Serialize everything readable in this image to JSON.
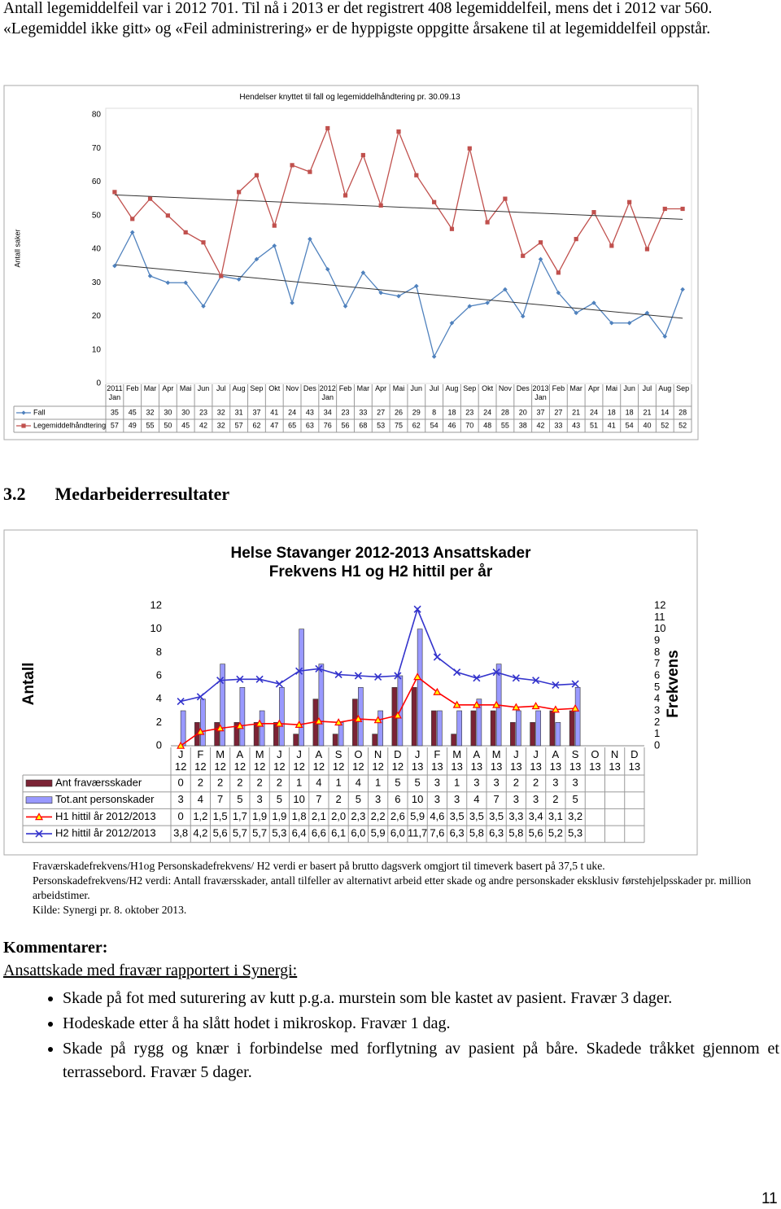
{
  "intro": "Antall legemiddelfeil var i 2012 701. Til nå i 2013 er det registrert 408 legemiddelfeil, mens det i 2012 var 560. «Legemiddel ikke gitt» og «Feil administrering» er de hyppigste oppgitte årsakene til at legemiddelfeil oppstår.",
  "section": {
    "number": "3.2",
    "title": "Medarbeiderresultater"
  },
  "chart_data": [
    {
      "type": "line",
      "title": "Hendelser knyttet til fall og legemiddelhåndtering pr. 30.09.13",
      "y_label": "Antall saker",
      "categories": [
        "2011 Jan",
        "Feb",
        "Mar",
        "Apr",
        "Mai",
        "Jun",
        "Jul",
        "Aug",
        "Sep",
        "Okt",
        "Nov",
        "Des",
        "2012 Jan",
        "Feb",
        "Mar",
        "Apr",
        "Mai",
        "Jun",
        "Jul",
        "Aug",
        "Sep",
        "Okt",
        "Nov",
        "Des",
        "2013 Jan",
        "Feb",
        "Mar",
        "Apr",
        "Mai",
        "Jun",
        "Jul",
        "Aug",
        "Sep"
      ],
      "series": [
        {
          "name": "Fall",
          "color": "#4f81bd",
          "marker": "diamond",
          "values": [
            35,
            45,
            32,
            30,
            30,
            23,
            32,
            31,
            37,
            41,
            24,
            43,
            34,
            23,
            33,
            27,
            26,
            29,
            8,
            18,
            23,
            24,
            28,
            20,
            37,
            27,
            21,
            24,
            18,
            18,
            21,
            14,
            28
          ]
        },
        {
          "name": "Legemiddelhåndtering",
          "color": "#c0504d",
          "marker": "square",
          "values": [
            57,
            49,
            55,
            50,
            45,
            42,
            32,
            57,
            62,
            47,
            65,
            63,
            76,
            56,
            68,
            53,
            75,
            62,
            54,
            46,
            70,
            48,
            55,
            38,
            42,
            33,
            43,
            51,
            41,
            54,
            40,
            52,
            52
          ]
        }
      ],
      "ylim": [
        0,
        80
      ],
      "yticks": [
        0,
        10,
        20,
        30,
        40,
        50,
        60,
        70,
        80
      ],
      "trendline": true,
      "data_table": true
    },
    {
      "type": "combo",
      "title": "Helse Stavanger 2012-2013 Ansattskader",
      "subtitle": "Frekvens H1 og H2 hittil per år",
      "y_label": "Antall",
      "y2_label": "Frekvens",
      "categories": [
        "J 12",
        "F 12",
        "M 12",
        "A 12",
        "M 12",
        "J 12",
        "J 12",
        "A 12",
        "S 12",
        "O 12",
        "N 12",
        "D 12",
        "J 13",
        "F 13",
        "M 13",
        "A 13",
        "M 13",
        "J 13",
        "J 13",
        "A 13",
        "S 13",
        "O 13",
        "N 13",
        "D 13"
      ],
      "series": [
        {
          "name": "Ant fraværsskader",
          "type": "bar",
          "color": "#7b2335",
          "values": [
            0,
            2,
            2,
            2,
            2,
            2,
            1,
            4,
            1,
            4,
            1,
            5,
            5,
            3,
            1,
            3,
            3,
            2,
            2,
            3,
            3,
            null,
            null,
            null
          ]
        },
        {
          "name": "Tot.ant personskader",
          "type": "bar",
          "color": "#9999ff",
          "values": [
            3,
            4,
            7,
            5,
            3,
            5,
            10,
            7,
            2,
            5,
            3,
            6,
            10,
            3,
            3,
            4,
            7,
            3,
            3,
            2,
            5,
            null,
            null,
            null
          ]
        },
        {
          "name": "H1 hittil år 2012/2013",
          "type": "line",
          "axis": "y2",
          "color": "#ff0000",
          "marker": "triangle",
          "marker_color": "#ffff00",
          "values": [
            0,
            1.2,
            1.5,
            1.7,
            1.9,
            1.9,
            1.8,
            2.1,
            2.0,
            2.3,
            2.2,
            2.6,
            5.9,
            4.6,
            3.5,
            3.5,
            3.5,
            3.3,
            3.4,
            3.1,
            3.2,
            null,
            null,
            null
          ],
          "value_labels": [
            "0",
            "1,2",
            "1,5",
            "1,7",
            "1,9",
            "1,9",
            "1,8",
            "2,1",
            "2,0",
            "2,3",
            "2,2",
            "2,6",
            "5,9",
            "4,6",
            "3,5",
            "3,5",
            "3,5",
            "3,3",
            "3,4",
            "3,1",
            "3,2",
            null,
            null,
            null
          ]
        },
        {
          "name": "H2 hittil år 2012/2013",
          "type": "line",
          "axis": "y2",
          "color": "#3333cc",
          "marker": "cross",
          "marker_color": "#3333cc",
          "values": [
            3.8,
            4.2,
            5.6,
            5.7,
            5.7,
            5.3,
            6.4,
            6.6,
            6.1,
            6.0,
            5.9,
            6.0,
            11.7,
            7.6,
            6.3,
            5.8,
            6.3,
            5.8,
            5.6,
            5.2,
            5.3,
            null,
            null,
            null
          ],
          "value_labels": [
            "3,8",
            "4,2",
            "5,6",
            "5,7",
            "5,7",
            "5,3",
            "6,4",
            "6,6",
            "6,1",
            "6,0",
            "5,9",
            "6,0",
            "11,7",
            "7,6",
            "6,3",
            "5,8",
            "6,3",
            "5,8",
            "5,6",
            "5,2",
            "5,3",
            null,
            null,
            null
          ]
        }
      ],
      "ylim": [
        0,
        12
      ],
      "yticks": [
        0,
        2,
        4,
        6,
        8,
        10,
        12
      ],
      "y2lim": [
        0,
        12
      ],
      "y2ticks": [
        0,
        1,
        2,
        3,
        4,
        5,
        6,
        7,
        8,
        9,
        10,
        11,
        12
      ],
      "data_table": true
    }
  ],
  "caption": [
    "Fraværskadefrekvens/H1og Personskadefrekvens/ H2 verdi er basert på brutto dagsverk omgjort til timeverk basert på 37,5 t uke.",
    "Personskadefrekvens/H2 verdi: Antall fraværsskader, antall tilfeller av alternativt arbeid etter skade og andre personskader eksklusiv førstehjelpsskader pr. million arbeidstimer.",
    "Kilde: Synergi pr. 8. oktober 2013."
  ],
  "comments": {
    "title": "Kommentarer:",
    "subtitle": "Ansattskade med fravær rapportert i Synergi:",
    "bullets": [
      "Skade på fot med suturering av kutt p.g.a. murstein som ble kastet av pasient. Fravær 3 dager.",
      "Hodeskade etter å ha slått hodet i mikroskop. Fravær 1 dag.",
      "Skade på rygg og knær i forbindelse med forflytning av pasient på båre. Skadede tråkket gjennom et terrassebord. Fravær 5 dager."
    ]
  },
  "page_number": "11"
}
